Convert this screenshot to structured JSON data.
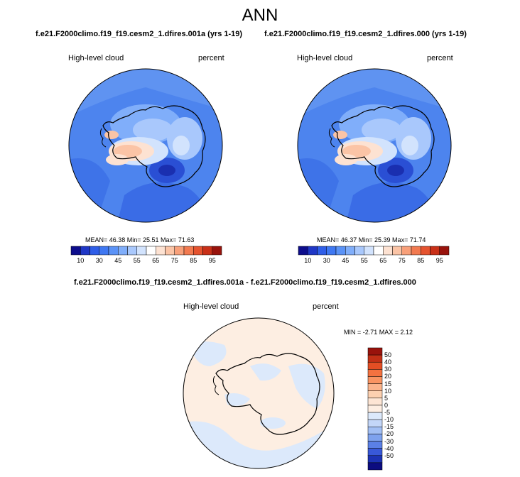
{
  "page": {
    "title": "ANN",
    "panels": [
      {
        "case_title": "f.e21.F2000climo.f19_f19.cesm2_1.dfires.001a (yrs 1-19)",
        "variable": "High-level cloud",
        "units": "percent",
        "stats": "MEAN= 46.38  Min= 25.51  Max= 71.63"
      },
      {
        "case_title": "f.e21.F2000climo.f19_f19.cesm2_1.dfires.000 (yrs 1-19)",
        "variable": "High-level cloud",
        "units": "percent",
        "stats": "MEAN= 46.37  Min= 25.39  Max= 71.74"
      }
    ],
    "diff": {
      "case_title": "f.e21.F2000climo.f19_f19.cesm2_1.dfires.001a - f.e21.F2000climo.f19_f19.cesm2_1.dfires.000",
      "variable": "High-level cloud",
      "units": "percent",
      "stats": "MIN = -2.71 MAX =  2.12"
    }
  },
  "colorbars": {
    "top": {
      "colors": [
        "#0d0d8c",
        "#1f37c6",
        "#2f5ee8",
        "#3f78f2",
        "#5b93f7",
        "#80aefa",
        "#a9c8fc",
        "#d2e3fd",
        "#ffffff",
        "#fde2d2",
        "#fbc4a6",
        "#f8a07a",
        "#f27a50",
        "#e5532f",
        "#c93018",
        "#99130c"
      ],
      "tick_labels": [
        "10",
        "30",
        "45",
        "55",
        "65",
        "75",
        "85",
        "95"
      ]
    },
    "diff": {
      "colors": [
        "#99130c",
        "#c23016",
        "#e34e24",
        "#f47240",
        "#f99462",
        "#fbb48c",
        "#fcd0b0",
        "#fde5d4",
        "#fdeee2",
        "#dce9fb",
        "#c3d6f8",
        "#a2bff4",
        "#7ea2ee",
        "#5b80e6",
        "#3858d8",
        "#1c32b4",
        "#0c0c80"
      ],
      "tick_labels": [
        "50",
        "40",
        "30",
        "20",
        "15",
        "10",
        "5",
        "0",
        "-5",
        "-10",
        "-15",
        "-20",
        "-30",
        "-40",
        "-50"
      ]
    }
  }
}
